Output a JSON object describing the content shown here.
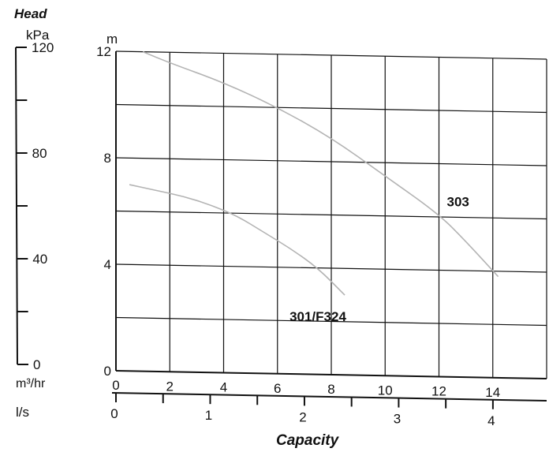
{
  "chart_data": {
    "type": "line",
    "title": "",
    "y_axis": {
      "label": "Head",
      "unit": "m",
      "ylim": [
        0,
        12
      ],
      "ticks": [
        0,
        4,
        8,
        12
      ],
      "tick_labels": [
        "0",
        "4",
        "8",
        "12"
      ]
    },
    "y2_axis": {
      "unit": "kPa",
      "ylim": [
        0,
        120
      ],
      "ticks": [
        0,
        20,
        40,
        60,
        80,
        100,
        120
      ],
      "labeled_ticks": [
        0,
        40,
        80,
        120
      ],
      "tick_labels": [
        "0",
        "40",
        "80",
        "120"
      ]
    },
    "x_axis": {
      "label": "Capacity",
      "unit": "m³/hr",
      "xlim": [
        0,
        16
      ],
      "ticks": [
        0,
        2,
        4,
        6,
        8,
        10,
        12,
        14
      ],
      "tick_labels": [
        "0",
        "2",
        "4",
        "6",
        "8",
        "10",
        "12",
        "14"
      ]
    },
    "x2_axis": {
      "unit": "l/s",
      "ticks": [
        0,
        0.5,
        1,
        1.5,
        2,
        2.5,
        3,
        3.5,
        4
      ],
      "labeled_ticks": [
        0,
        1,
        2,
        3,
        4
      ],
      "tick_labels": [
        "0",
        "1",
        "2",
        "3",
        "4"
      ]
    },
    "grid": true,
    "series": [
      {
        "name": "303",
        "color": "#b3b3b3",
        "x": [
          1,
          2,
          4,
          6,
          8,
          10,
          12,
          13,
          14.2
        ],
        "y": [
          12,
          11.6,
          10.9,
          10,
          8.9,
          7.5,
          6.1,
          5.1,
          3.8
        ]
      },
      {
        "name": "301/F324",
        "color": "#b3b3b3",
        "x": [
          0.5,
          1.5,
          2.5,
          3.5,
          4.5,
          5.5,
          6.5,
          7.5,
          8.5
        ],
        "y": [
          7,
          6.8,
          6.6,
          6.3,
          5.9,
          5.3,
          4.7,
          4,
          3
        ]
      }
    ]
  }
}
